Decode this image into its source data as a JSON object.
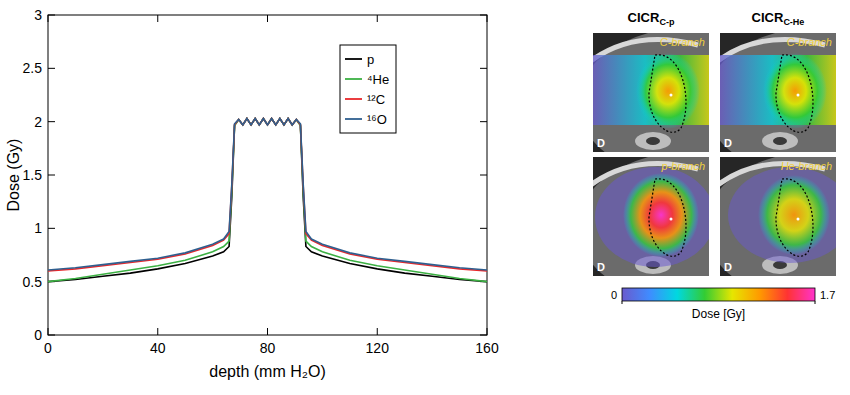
{
  "chart_data": {
    "type": "line",
    "x_label": "depth (mm H₂O)",
    "y_label": "Dose (Gy)",
    "x": [
      0,
      10,
      20,
      30,
      40,
      50,
      60,
      64,
      66,
      67,
      68,
      69.5,
      71,
      72.5,
      74,
      75.5,
      77,
      78.5,
      80,
      81.5,
      83,
      84.5,
      86,
      87.5,
      89,
      90.5,
      92,
      93,
      94,
      96,
      100,
      110,
      120,
      130,
      140,
      150,
      160
    ],
    "series": [
      {
        "name": "p",
        "color": "#000000",
        "values": [
          0.5,
          0.52,
          0.55,
          0.58,
          0.62,
          0.67,
          0.74,
          0.78,
          0.83,
          1.3,
          1.97,
          2.02,
          1.97,
          2.03,
          1.97,
          2.03,
          1.97,
          2.03,
          1.97,
          2.03,
          1.97,
          2.03,
          1.97,
          2.03,
          1.97,
          2.02,
          1.97,
          1.3,
          0.83,
          0.78,
          0.74,
          0.67,
          0.62,
          0.58,
          0.55,
          0.52,
          0.5
        ]
      },
      {
        "name": "⁴He",
        "color": "#3cb043",
        "values": [
          0.5,
          0.53,
          0.57,
          0.61,
          0.65,
          0.7,
          0.78,
          0.83,
          0.88,
          1.35,
          1.96,
          2.02,
          1.97,
          2.03,
          1.97,
          2.03,
          1.97,
          2.03,
          1.97,
          2.03,
          1.97,
          2.03,
          1.97,
          2.03,
          1.97,
          2.02,
          1.96,
          1.35,
          0.88,
          0.83,
          0.78,
          0.7,
          0.65,
          0.61,
          0.57,
          0.53,
          0.5
        ]
      },
      {
        "name": "¹²C",
        "color": "#e8282b",
        "values": [
          0.6,
          0.62,
          0.65,
          0.68,
          0.71,
          0.76,
          0.84,
          0.89,
          0.95,
          1.4,
          1.97,
          2.02,
          1.97,
          2.03,
          1.97,
          2.03,
          1.97,
          2.03,
          1.97,
          2.03,
          1.97,
          2.03,
          1.97,
          2.03,
          1.97,
          2.02,
          1.97,
          1.4,
          0.95,
          0.89,
          0.84,
          0.76,
          0.71,
          0.68,
          0.65,
          0.62,
          0.6
        ]
      },
      {
        "name": "¹⁶O",
        "color": "#2f5f8f",
        "values": [
          0.61,
          0.63,
          0.66,
          0.69,
          0.72,
          0.77,
          0.85,
          0.9,
          0.97,
          1.42,
          1.98,
          2.02,
          1.97,
          2.03,
          1.97,
          2.03,
          1.97,
          2.03,
          1.97,
          2.03,
          1.97,
          2.03,
          1.97,
          2.03,
          1.97,
          2.02,
          1.98,
          1.42,
          0.97,
          0.9,
          0.85,
          0.77,
          0.72,
          0.69,
          0.66,
          0.63,
          0.61
        ]
      }
    ],
    "xlim": [
      0,
      160
    ],
    "xticks": [
      0,
      40,
      80,
      120,
      160
    ],
    "ylim": [
      0,
      3
    ],
    "yticks": [
      0,
      0.5,
      1,
      1.5,
      2,
      2.5,
      3
    ],
    "grid": false,
    "legend": "upper right"
  },
  "dose_maps": {
    "columns": [
      {
        "title": "CICR",
        "subscript": "C-p"
      },
      {
        "title": "CICR",
        "subscript": "C-He"
      }
    ],
    "panels": [
      {
        "label": "C-branch",
        "corner": "D"
      },
      {
        "label": "C-branch",
        "corner": "D"
      },
      {
        "label": "p-branch",
        "corner": "D"
      },
      {
        "label": "He-branch",
        "corner": "D"
      }
    ],
    "colorbar": {
      "label": "Dose [Gy]",
      "range": [
        0,
        1.7
      ],
      "ticks": [
        0,
        1.7
      ],
      "colors": [
        "#6a5acd",
        "#3f8cff",
        "#00d8e0",
        "#33cc33",
        "#e6e600",
        "#ff9900",
        "#ff3333",
        "#ff33cc"
      ]
    }
  }
}
